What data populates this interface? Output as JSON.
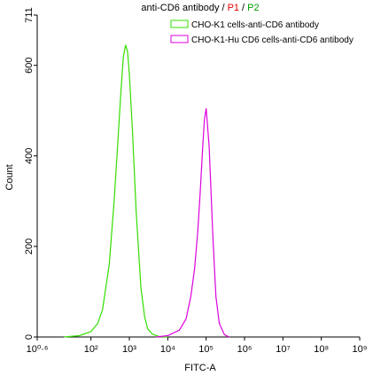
{
  "chart_data": {
    "type": "line",
    "title_parts": [
      {
        "text": "anti-CD6 antibody /",
        "color": "#000000"
      },
      {
        "text": "P1",
        "color": "#e00000"
      },
      {
        "text": "/",
        "color": "#000000"
      },
      {
        "text": "P2",
        "color": "#00a000"
      }
    ],
    "x_label": "FITC-A",
    "y_label": "Count",
    "x_log": true,
    "xlim": [
      3.98107,
      1000000000
    ],
    "ylim": [
      0,
      711
    ],
    "xticks": [
      {
        "value": 3.98107,
        "label": "10⁰·⁶"
      },
      {
        "value": 100,
        "label": "10²"
      },
      {
        "value": 1000,
        "label": "10³"
      },
      {
        "value": 10000,
        "label": "10⁴"
      },
      {
        "value": 100000,
        "label": "10⁵"
      },
      {
        "value": 1000000,
        "label": "10⁶"
      },
      {
        "value": 10000000,
        "label": "10⁷"
      },
      {
        "value": 100000000,
        "label": "10⁸"
      },
      {
        "value": 1000000000,
        "label": "10⁹"
      }
    ],
    "yticks": [
      0,
      200,
      400,
      600,
      711
    ],
    "series": [
      {
        "name": "CHO-K1 cells-anti-CD6 antibody",
        "color": "#33dd00",
        "x": [
          20,
          50,
          100,
          150,
          200,
          300,
          400,
          500,
          600,
          700,
          800,
          900,
          1000,
          1200,
          1500,
          2000,
          2500,
          3000,
          4000,
          6000,
          10000
        ],
        "values": [
          0,
          3,
          12,
          30,
          60,
          160,
          300,
          430,
          540,
          620,
          645,
          630,
          580,
          460,
          280,
          110,
          45,
          18,
          6,
          1,
          0
        ]
      },
      {
        "name": "CHO-K1-Hu CD6 cells-anti-CD6 antibody",
        "color": "#dd00dd",
        "x": [
          5000,
          10000,
          20000,
          30000,
          40000,
          50000,
          60000,
          70000,
          80000,
          90000,
          100000,
          120000,
          150000,
          180000,
          220000,
          300000,
          400000
        ],
        "values": [
          0,
          3,
          15,
          40,
          90,
          150,
          230,
          320,
          410,
          480,
          505,
          420,
          220,
          90,
          30,
          5,
          0
        ]
      }
    ]
  }
}
